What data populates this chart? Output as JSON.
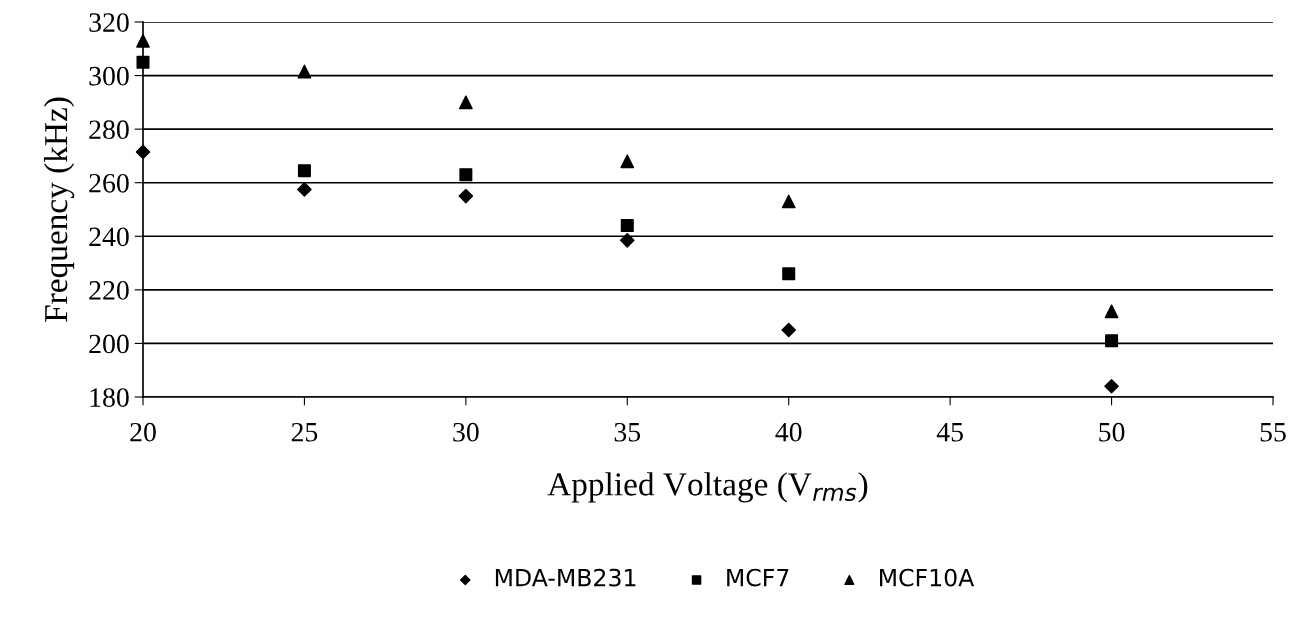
{
  "chart_data": {
    "type": "scatter",
    "xlabel": "Applied Voltage (V$_{rms}$)",
    "ylabel": "Frequency (kHz)",
    "x": [
      20,
      25,
      30,
      35,
      40,
      50
    ],
    "series": [
      {
        "name": "MDA-MB231",
        "color": "#000000",
        "marker": "diamond",
        "values": [
          271.5,
          257.5,
          255,
          238.5,
          205,
          184
        ]
      },
      {
        "name": "MCF7",
        "color": "#000000",
        "marker": "square",
        "values": [
          305,
          264.5,
          263,
          244,
          226,
          201
        ]
      },
      {
        "name": "MCF10A",
        "color": "#000000",
        "marker": "triangle",
        "values": [
          313,
          301.5,
          290,
          268,
          253,
          212
        ]
      }
    ],
    "xlim": [
      20,
      55
    ],
    "xticks": [
      20,
      25,
      30,
      35,
      40,
      45,
      50,
      55
    ],
    "ylim": [
      180,
      320
    ],
    "yticks": [
      180,
      200,
      220,
      240,
      260,
      280,
      300,
      320
    ],
    "grid": "y",
    "legend": "bottom"
  }
}
